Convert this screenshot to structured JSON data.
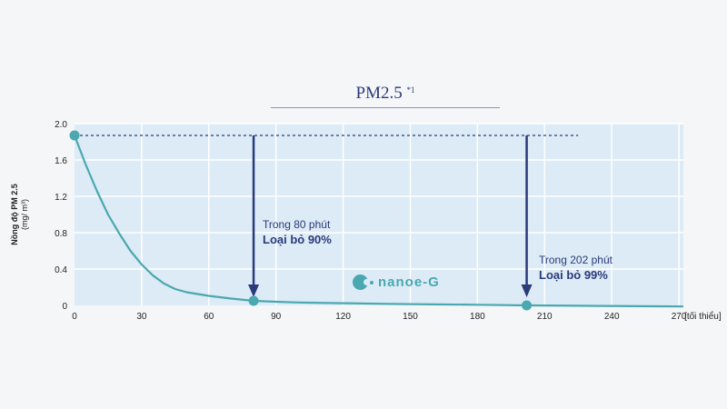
{
  "title": "PM2.5",
  "title_sup": "*1",
  "brand": {
    "text": "nanoe-G",
    "icon": "nanoe-logo-icon",
    "color": "#4aa8b0"
  },
  "annotations": [
    {
      "line1": "Trong 80 phút",
      "line2": "Loại bỏ 90%",
      "x": 80
    },
    {
      "line1": "Trong 202 phút",
      "line2": "Loại bỏ 99%",
      "x": 202
    }
  ],
  "chart_data": {
    "type": "line",
    "xlabel": "[tối thiểu]",
    "ylabel": "Nồng độ PM 2.5",
    "yunit": "(mg/ m³)",
    "xlim": [
      0,
      272
    ],
    "ylim": [
      0,
      2.0
    ],
    "x_ticks": [
      0,
      30,
      60,
      90,
      120,
      150,
      180,
      210,
      240,
      270
    ],
    "y_ticks": [
      0,
      0.4,
      0.8,
      1.2,
      1.6,
      2.0
    ],
    "y_tick_labels": [
      "0",
      "0.4",
      "0.8",
      "1.2",
      "1.6",
      "2.0"
    ],
    "grid": true,
    "reference_line": {
      "y": 1.87,
      "x_start": 0,
      "x_end": 225
    },
    "highlight_points": [
      {
        "x": 0,
        "y": 1.87
      },
      {
        "x": 80,
        "y": 0.05
      },
      {
        "x": 202,
        "y": 0.0
      }
    ],
    "series": [
      {
        "color": "#4aa8b0",
        "x": [
          0,
          5,
          10,
          15,
          20,
          25,
          30,
          35,
          40,
          45,
          50,
          55,
          60,
          70,
          80,
          90,
          100,
          120,
          140,
          160,
          180,
          202,
          230,
          260,
          272
        ],
        "y": [
          1.87,
          1.55,
          1.26,
          1.0,
          0.79,
          0.6,
          0.45,
          0.33,
          0.24,
          0.18,
          0.145,
          0.125,
          0.105,
          0.075,
          0.05,
          0.04,
          0.032,
          0.024,
          0.017,
          0.011,
          0.007,
          0.0,
          -0.005,
          -0.01,
          -0.012
        ]
      }
    ],
    "colors": {
      "plot_bg": "#dcebf5",
      "grid": "#ffffff",
      "arrow": "#2b3a7a",
      "ref_line": "#2b3a7a"
    }
  }
}
